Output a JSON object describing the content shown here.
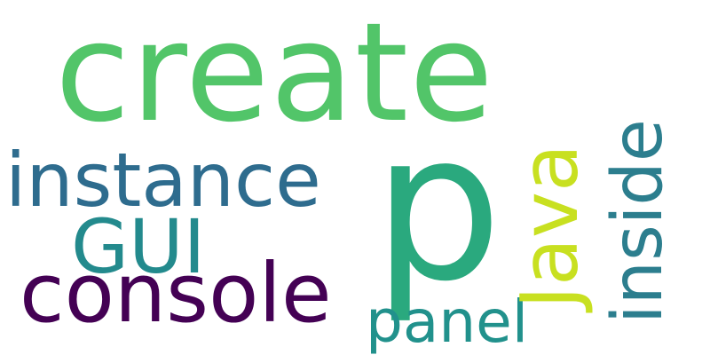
{
  "words": {
    "create": {
      "text": "create",
      "color": "#52c569"
    },
    "p": {
      "text": "p",
      "color": "#2aa97e"
    },
    "instance": {
      "text": "instance",
      "color": "#2e6c8e"
    },
    "gui": {
      "text": "GUI",
      "color": "#238a8d"
    },
    "console": {
      "text": "console",
      "color": "#440154"
    },
    "panel": {
      "text": "panel",
      "color": "#21918c"
    },
    "java": {
      "text": "Java",
      "color": "#c8e020"
    },
    "inside": {
      "text": "inside",
      "color": "#2c7e8e"
    }
  }
}
